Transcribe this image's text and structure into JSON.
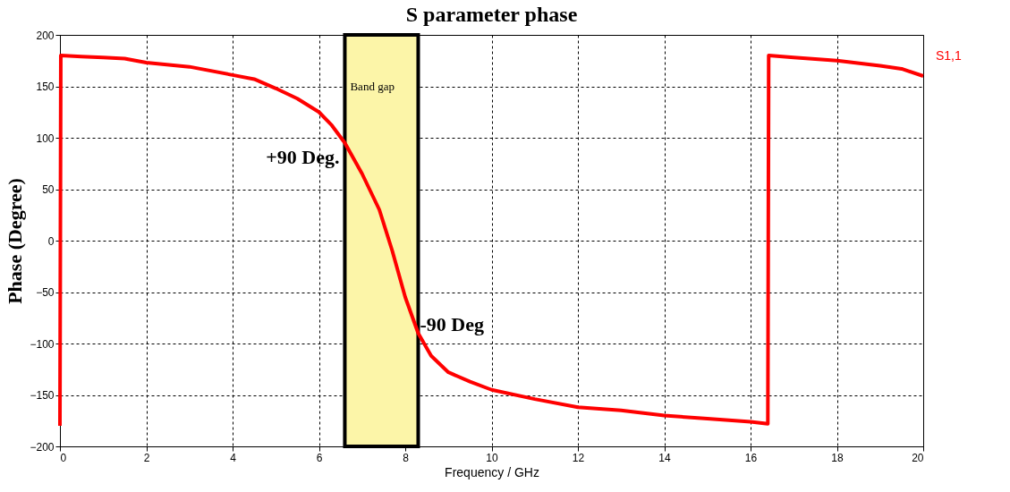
{
  "chart_data": {
    "type": "line",
    "title": "S parameter phase",
    "xlabel": "Frequency / GHz",
    "ylabel": "Phase (Degree)",
    "series": [
      {
        "name": "S1,1",
        "color": "#ff0000",
        "x": [
          0,
          0.02,
          0.5,
          1,
          1.5,
          2,
          3,
          4,
          4.5,
          5,
          5.5,
          6,
          6.3,
          6.6,
          7,
          7.4,
          7.7,
          8,
          8.3,
          8.6,
          9,
          9.5,
          10,
          11,
          12,
          13,
          14,
          15,
          16,
          16.4,
          16.42,
          17,
          18,
          19,
          19.5,
          20
        ],
        "values": [
          -180,
          180,
          179,
          178,
          177,
          173,
          169,
          161,
          157,
          148,
          138,
          125,
          112,
          95,
          65,
          30,
          -10,
          -55,
          -90,
          -112,
          -128,
          -137,
          -145,
          -154,
          -162,
          -165,
          -170,
          -173,
          -176,
          -178,
          180,
          178,
          175,
          170,
          167,
          160
        ]
      }
    ],
    "xlim": [
      0,
      20
    ],
    "xticks": [
      0,
      2,
      4,
      6,
      8,
      10,
      12,
      14,
      16,
      18,
      20
    ],
    "ylim": [
      -200,
      200
    ],
    "yticks": [
      -200,
      -150,
      -100,
      -50,
      0,
      50,
      100,
      150,
      200
    ],
    "grid": true,
    "legend": false,
    "line_style": "solid",
    "marker": "none",
    "bands": [
      {
        "axis": "x",
        "from": 6.6,
        "to": 8.3,
        "label": "Band gap",
        "color": "#fcf5a8"
      }
    ],
    "annotations": [
      {
        "text": "+90 Deg.",
        "x": 6.6,
        "y": 90
      },
      {
        "text": "-90 Deg",
        "x": 8.3,
        "y": -90
      }
    ]
  }
}
